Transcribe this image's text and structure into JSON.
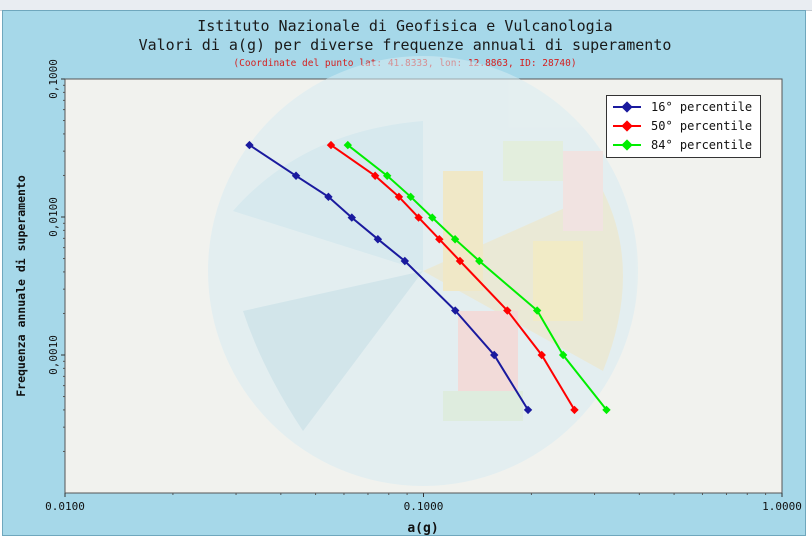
{
  "header": {
    "title_line1": "Istituto Nazionale di Geofisica e Vulcanologia",
    "title_line2": "Valori di a(g) per diverse frequenze annuali di superamento",
    "subtitle": "(Coordinate del punto lat: 41.8333, lon: 12.8863, ID: 28740)"
  },
  "chart_data": {
    "type": "line",
    "title": "Valori di a(g) per diverse frequenze annuali di superamento",
    "xlabel": "a(g)",
    "ylabel": "Frequenza annuale di superamento",
    "xscale": "log",
    "yscale": "log",
    "xlim": [
      0.01,
      1.0
    ],
    "ylim": [
      0.0001,
      0.1
    ],
    "xticks": [
      0.01,
      0.1,
      1.0
    ],
    "xtick_labels": [
      "0.0100",
      "0.1000",
      "1.0000"
    ],
    "yticks": [
      0.001,
      0.01,
      0.1
    ],
    "ytick_labels": [
      "0,0010",
      "0,0100",
      "0,1000"
    ],
    "legend_position": "top-right",
    "y": [
      0.0332,
      0.0199,
      0.014,
      0.0099,
      0.0069,
      0.0048,
      0.0021,
      0.001,
      0.0004
    ],
    "series": [
      {
        "name": "16° percentile",
        "color": "#1a1a9e",
        "x": [
          0.0327,
          0.0441,
          0.0543,
          0.0631,
          0.0746,
          0.0887,
          0.1226,
          0.1575,
          0.1957
        ]
      },
      {
        "name": "50° percentile",
        "color": "#ff0000",
        "x": [
          0.0552,
          0.0733,
          0.0854,
          0.0969,
          0.1107,
          0.1264,
          0.1713,
          0.2137,
          0.2637
        ]
      },
      {
        "name": "84° percentile",
        "color": "#00ee00",
        "x": [
          0.0615,
          0.0792,
          0.0921,
          0.1058,
          0.1225,
          0.1431,
          0.2075,
          0.2452,
          0.3239
        ]
      }
    ]
  }
}
